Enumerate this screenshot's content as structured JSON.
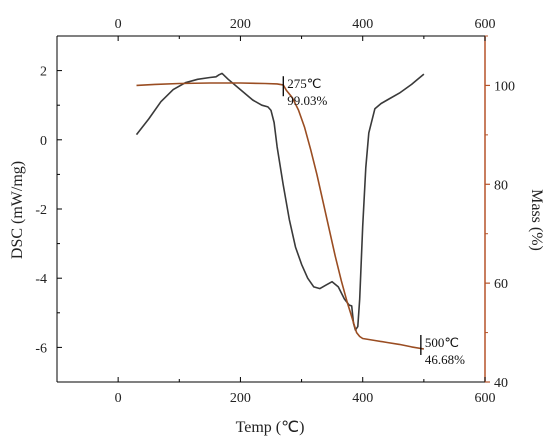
{
  "chart_data": {
    "type": "line",
    "xlabel": "Temp (℃)",
    "ylabel_left": "DSC (mW/mg)",
    "ylabel_right": "Mass (%)",
    "xlim": [
      -100,
      600
    ],
    "ylim_left": [
      -7,
      3
    ],
    "ylim_right": [
      40,
      110
    ],
    "xticks": [
      0,
      200,
      400,
      600
    ],
    "xticks_bottom_labels": [
      "0",
      "200",
      "400",
      "600"
    ],
    "xticks_top_labels": [
      "0",
      "200",
      "400",
      "600"
    ],
    "yticks_left": [
      2,
      0,
      -2,
      -4,
      -6
    ],
    "yticks_left_labels": [
      "2",
      "0",
      "-2",
      "-4",
      "-6"
    ],
    "yticks_right": [
      100,
      80,
      60,
      40
    ],
    "yticks_right_labels": [
      "100",
      "80",
      "60",
      "40"
    ],
    "colors": {
      "dsc": "#3a3a3a",
      "mass": "#9a4d22",
      "right_axis": "#b5532a",
      "axis": "#000000"
    },
    "series": [
      {
        "axis": "left",
        "color": "#3a3a3a",
        "x": [
          30,
          50,
          70,
          90,
          110,
          130,
          150,
          160,
          165,
          170,
          180,
          200,
          220,
          235,
          245,
          250,
          255,
          260,
          270,
          280,
          290,
          300,
          310,
          320,
          330,
          340,
          350,
          360,
          370,
          378,
          382,
          385,
          388,
          392,
          395,
          400,
          405,
          410,
          420,
          430,
          440,
          460,
          480,
          490,
          500
        ],
        "y": [
          0.15,
          0.6,
          1.1,
          1.45,
          1.65,
          1.75,
          1.8,
          1.82,
          1.88,
          1.92,
          1.75,
          1.45,
          1.15,
          1.0,
          0.95,
          0.85,
          0.5,
          -0.2,
          -1.3,
          -2.3,
          -3.1,
          -3.6,
          -4.0,
          -4.25,
          -4.3,
          -4.2,
          -4.1,
          -4.25,
          -4.6,
          -4.78,
          -4.8,
          -5.3,
          -5.5,
          -5.4,
          -4.6,
          -2.5,
          -0.8,
          0.2,
          0.9,
          1.05,
          1.15,
          1.35,
          1.6,
          1.75,
          1.9
        ]
      },
      {
        "axis": "right",
        "color": "#9a4d22",
        "x": [
          30,
          60,
          100,
          150,
          200,
          240,
          260,
          270,
          275,
          285,
          295,
          305,
          315,
          325,
          335,
          345,
          355,
          365,
          375,
          380,
          385,
          390,
          395,
          400,
          420,
          440,
          460,
          480,
          500
        ],
        "y": [
          100.0,
          100.2,
          100.4,
          100.5,
          100.5,
          100.4,
          100.3,
          100.1,
          99.03,
          97.5,
          95.0,
          91.5,
          87.0,
          82.0,
          76.5,
          71.0,
          65.5,
          60.5,
          56.0,
          54.0,
          52.0,
          50.0,
          49.2,
          48.8,
          48.4,
          48.0,
          47.6,
          47.1,
          46.68
        ]
      }
    ],
    "annotations": [
      {
        "x": 275,
        "axis": "right",
        "y": 99.03,
        "lines": [
          "275℃",
          "99.03%"
        ]
      },
      {
        "x": 500,
        "axis": "right",
        "y": 46.68,
        "lines": [
          "500℃",
          "46.68%"
        ]
      }
    ]
  }
}
